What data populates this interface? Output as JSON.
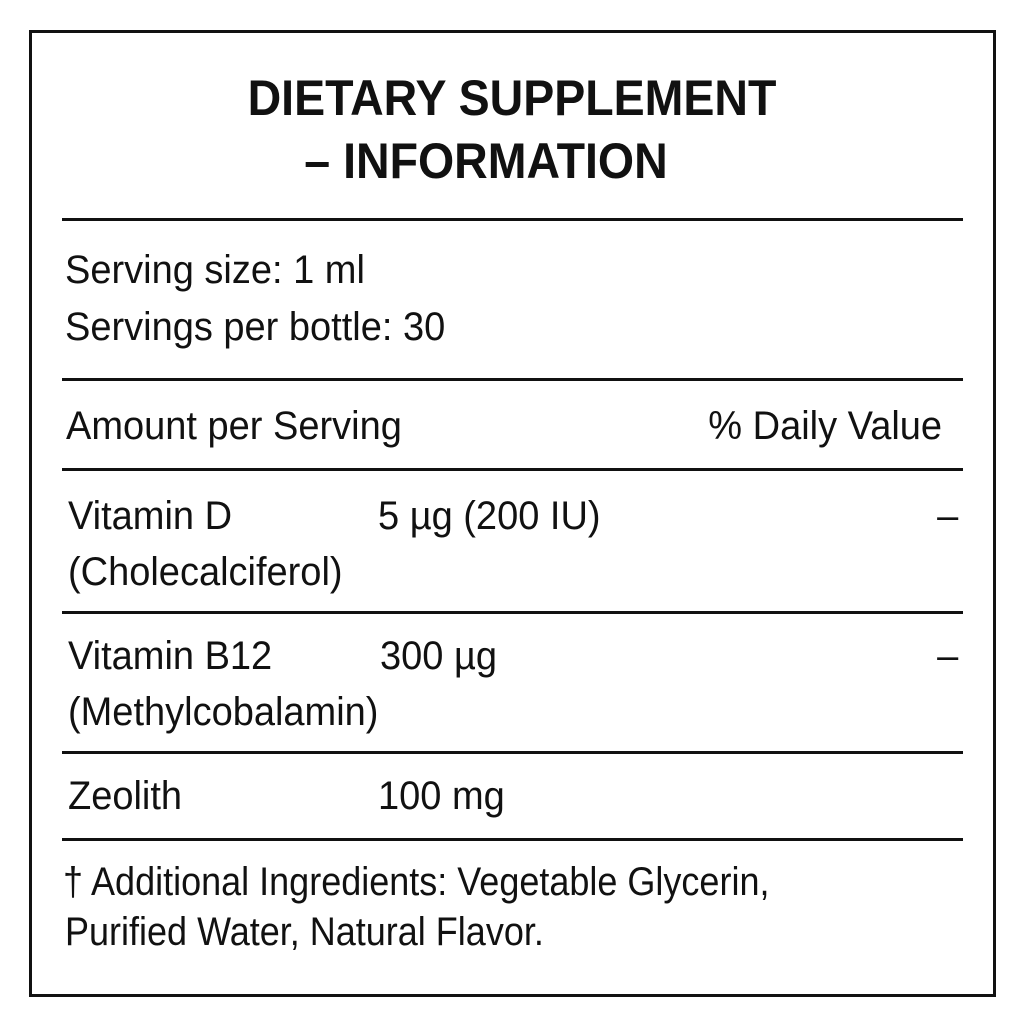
{
  "title": {
    "line1": "DIETARY SUPPLEMENT",
    "line2": "– INFORMATION"
  },
  "serving": {
    "size": "Serving size: 1 ml",
    "per_bottle": "Servings per bottle: 30"
  },
  "header": {
    "amount": "Amount per Serving",
    "dv": "% Daily Value"
  },
  "nutrients": [
    {
      "name": "Vitamin D",
      "subname": "(Cholecalciferol)",
      "amount": "5 µg (200 IU)",
      "dv": "–"
    },
    {
      "name": "Vitamin B12",
      "subname": "(Methylcobalamin)",
      "amount": "300 µg",
      "dv": "–"
    },
    {
      "name": "Zeolith",
      "amount": "100 mg"
    }
  ],
  "footnote": {
    "line1": "† Additional Ingredients: Vegetable Glycerin,",
    "line2": "Purified Water, Natural Flavor."
  }
}
